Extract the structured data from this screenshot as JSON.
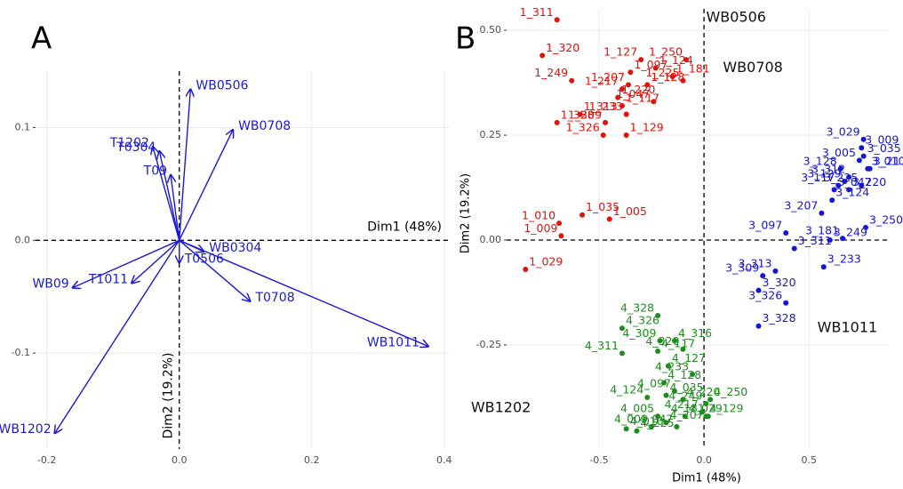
{
  "chart_data": [
    {
      "type": "biplot",
      "panel_label": "A",
      "color": "#1a1ad6",
      "grid": true,
      "x_label": "Dim1 (48%)",
      "y_label": "Dim2 (19.2%)",
      "xlim": [
        -0.217,
        0.407
      ],
      "ylim": [
        -0.185,
        0.15
      ],
      "xticks": [
        -0.2,
        {
          "value": 0,
          "label": "0.0"
        },
        0.2,
        0.4
      ],
      "yticks": [
        -0.1,
        {
          "value": 0,
          "label": "0.0"
        },
        0.1
      ],
      "arrows": [
        {
          "name": "WB0506",
          "x": 0.017,
          "y": 0.134
        },
        {
          "name": "WB0708",
          "x": 0.081,
          "y": 0.098
        },
        {
          "name": "T0304",
          "x": -0.03,
          "y": 0.079
        },
        {
          "name": "T1202",
          "x": -0.04,
          "y": 0.083
        },
        {
          "name": "T09",
          "x": -0.013,
          "y": 0.058
        },
        {
          "name": "WB0304",
          "x": 0.037,
          "y": -0.01
        },
        {
          "name": "T0506",
          "x": 0.0,
          "y": -0.02
        },
        {
          "name": "T1011",
          "x": -0.072,
          "y": -0.038
        },
        {
          "name": "WB09",
          "x": -0.161,
          "y": -0.042
        },
        {
          "name": "T0708",
          "x": 0.107,
          "y": -0.054
        },
        {
          "name": "WB1011",
          "x": 0.376,
          "y": -0.094
        },
        {
          "name": "WB1202",
          "x": -0.188,
          "y": -0.171
        }
      ]
    },
    {
      "type": "labeled-scatter",
      "panel_label": "B",
      "grid": true,
      "x_label": "Dim1 (48%)",
      "y_label": "Dim2 (19.2%)",
      "xlim": [
        -0.94,
        0.88
      ],
      "ylim": [
        -0.498,
        0.551
      ],
      "xticks": [
        -0.5,
        {
          "value": 0,
          "label": "0.0"
        },
        0.5
      ],
      "yticks": [
        -0.25,
        {
          "value": 0,
          "label": "0.00"
        },
        0.25,
        {
          "value": 0.5,
          "label": "0.50"
        }
      ],
      "variable_labels": [
        {
          "text": "WB0506",
          "x": 0.01,
          "y": 0.53
        },
        {
          "text": "WB0708",
          "x": 0.09,
          "y": 0.41
        },
        {
          "text": "WB1011",
          "x": 0.54,
          "y": -0.21
        },
        {
          "text": "WB1202",
          "x": -1.11,
          "y": -0.4
        }
      ],
      "groups": [
        {
          "color": "#e3120b",
          "labels": [
            "1_311",
            "1_320",
            "1_127",
            "1_124",
            "1_250",
            "1_097",
            "1_217",
            "1_181",
            "1_249",
            "1_220",
            "1_207",
            "1_128",
            "1_225",
            "1_313",
            "1_047",
            "1_117",
            "1_233",
            "1_328",
            "1_326",
            "1_129",
            "1_309",
            "1_035",
            "1_010",
            "1_005",
            "1_009",
            "1_029"
          ],
          "x": [
            -0.7,
            -0.77,
            -0.3,
            -0.23,
            -0.085,
            -0.35,
            -0.39,
            -0.15,
            -0.63,
            -0.41,
            -0.36,
            -0.27,
            -0.1,
            -0.59,
            -0.24,
            -0.39,
            -0.37,
            -0.7,
            -0.48,
            -0.37,
            -0.47,
            -0.58,
            -0.69,
            -0.45,
            -0.68,
            -0.85
          ],
          "y": [
            0.525,
            0.44,
            0.43,
            0.41,
            0.43,
            0.4,
            0.36,
            0.39,
            0.38,
            0.34,
            0.37,
            0.37,
            0.38,
            0.3,
            0.33,
            0.32,
            0.3,
            0.28,
            0.25,
            0.25,
            0.28,
            0.06,
            0.04,
            0.05,
            0.01,
            -0.07
          ]
        },
        {
          "color": "#1515d4",
          "labels": [
            "3_029",
            "3_009",
            "3_005",
            "3_010",
            "3_128",
            "3_035",
            "3_129",
            "3_047",
            "3_312",
            "3_217",
            "3_117",
            "3_220",
            "3_225",
            "3_124",
            "3_207",
            "3_250",
            "3_097",
            "3_249",
            "3_181",
            "3_311",
            "3_313",
            "3_233",
            "3_309",
            "3_320",
            "3_326",
            "3_328"
          ],
          "x": [
            0.76,
            0.75,
            0.74,
            0.78,
            0.65,
            0.76,
            0.67,
            0.62,
            0.69,
            0.79,
            0.64,
            0.69,
            0.75,
            0.61,
            0.56,
            0.77,
            0.39,
            0.6,
            0.66,
            0.43,
            0.34,
            0.57,
            0.28,
            0.26,
            0.39,
            0.26
          ],
          "y": [
            0.24,
            0.22,
            0.19,
            0.17,
            0.17,
            0.2,
            0.14,
            0.12,
            0.15,
            0.17,
            0.13,
            0.12,
            0.13,
            0.095,
            0.064,
            0.03,
            0.017,
            0.0,
            0.004,
            -0.02,
            -0.074,
            -0.064,
            -0.085,
            -0.12,
            -0.15,
            -0.205
          ]
        },
        {
          "color": "#1e8c1e",
          "labels": [
            "4_328",
            "4_326",
            "4_309",
            "4_316",
            "4_311",
            "4_117",
            "4_320",
            "4_127",
            "4_233",
            "4_128",
            "4_097",
            "4_220",
            "4_249",
            "4_250",
            "4_124",
            "4_035",
            "4_217",
            "4_129",
            "4_181",
            "4_225",
            "4_005",
            "4_010",
            "4_009",
            "4_207",
            "4_047",
            "4_029"
          ],
          "x": [
            -0.22,
            -0.39,
            -0.21,
            -0.14,
            -0.39,
            -0.22,
            -0.1,
            -0.17,
            -0.055,
            -0.19,
            -0.14,
            -0.1,
            0.01,
            0.03,
            -0.27,
            -0.18,
            -0.01,
            0.01,
            0.02,
            -0.32,
            -0.22,
            -0.37,
            -0.25,
            -0.18,
            -0.13,
            -0.09
          ],
          "y": [
            -0.18,
            -0.21,
            -0.24,
            -0.24,
            -0.27,
            -0.265,
            -0.26,
            -0.3,
            -0.32,
            -0.34,
            -0.36,
            -0.38,
            -0.39,
            -0.38,
            -0.375,
            -0.37,
            -0.41,
            -0.42,
            -0.42,
            -0.455,
            -0.42,
            -0.45,
            -0.445,
            -0.435,
            -0.445,
            -0.42
          ]
        }
      ]
    }
  ]
}
